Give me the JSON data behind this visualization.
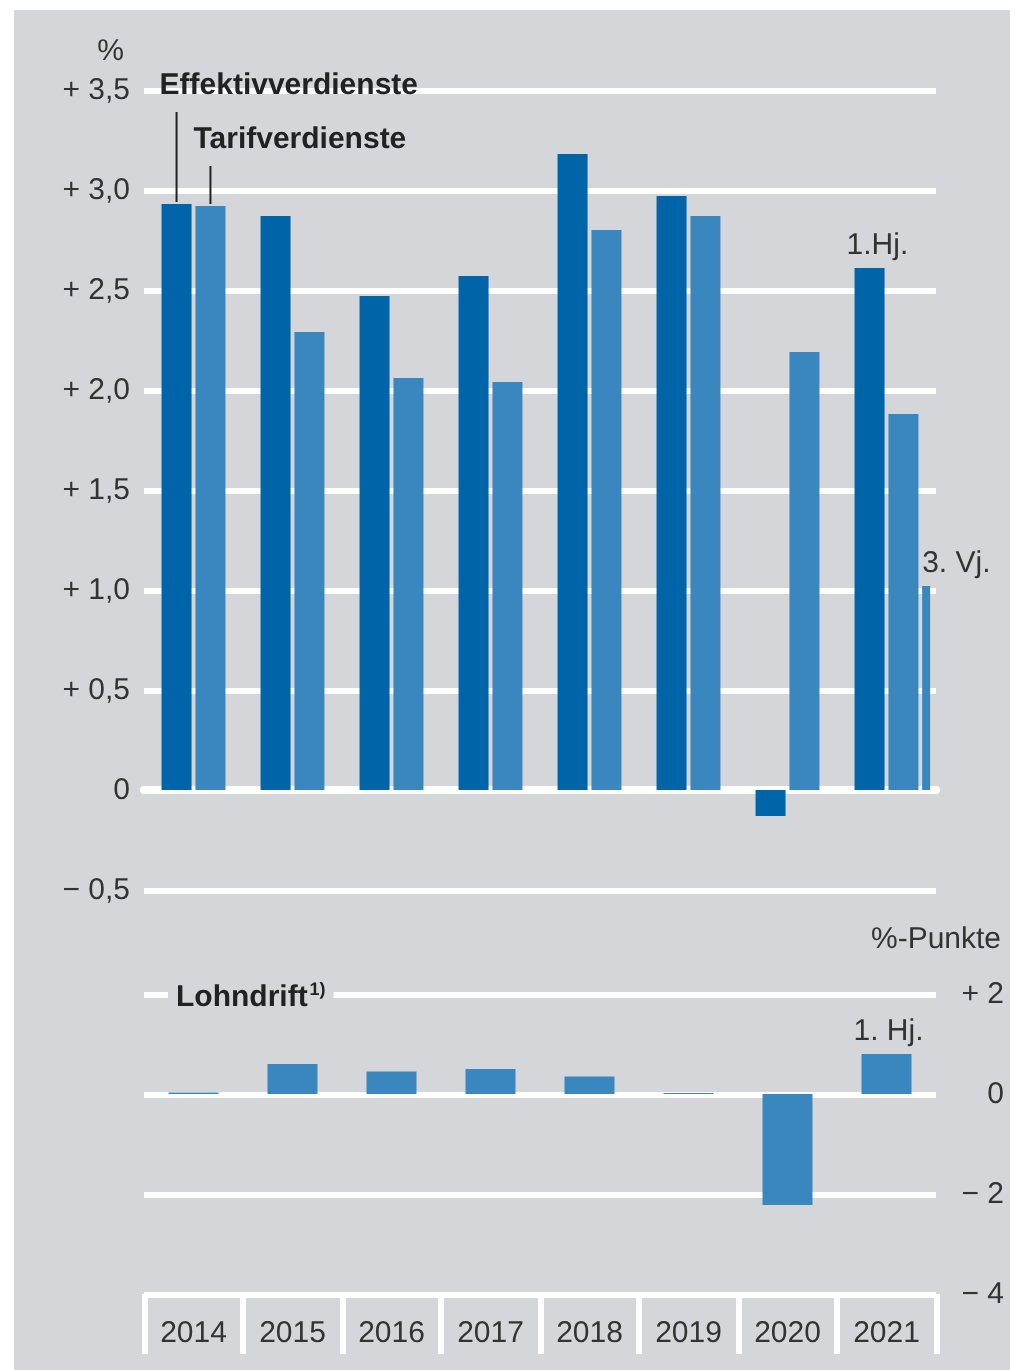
{
  "chart_data": [
    {
      "type": "bar",
      "ylabel": "%",
      "categories": [
        "2014",
        "2015",
        "2016",
        "2017",
        "2018",
        "2019",
        "2020",
        "2021"
      ],
      "series": [
        {
          "name": "Effektivverdienste",
          "color": "#0064a8",
          "values": [
            2.93,
            2.87,
            2.47,
            2.57,
            3.18,
            2.97,
            -0.13,
            2.61
          ]
        },
        {
          "name": "Tarifverdienste",
          "color": "#3a87c0",
          "values": [
            2.92,
            2.29,
            2.06,
            2.04,
            2.8,
            2.87,
            2.19,
            1.88
          ]
        },
        {
          "color": "#3a87c0",
          "values": [
            null,
            null,
            null,
            null,
            null,
            null,
            null,
            1.02
          ]
        }
      ],
      "ylim": [
        -0.5,
        3.5
      ],
      "yticks": [
        {
          "value": -0.5,
          "label": "− 0,5"
        },
        0,
        {
          "value": 0.5,
          "label": "+ 0,5"
        },
        {
          "value": 1,
          "label": "+ 1,0"
        },
        {
          "value": 1.5,
          "label": "+ 1,5"
        },
        {
          "value": 2,
          "label": "+ 2,0"
        },
        {
          "value": 2.5,
          "label": "+ 2,5"
        },
        {
          "value": 3,
          "label": "+ 3,0"
        },
        {
          "value": 3.5,
          "label": "+ 3,5"
        }
      ],
      "grid": "y",
      "tick_labels": "y",
      "annotations": [
        {
          "text": "1.Hj.",
          "x": "2021",
          "y": 2.61
        },
        {
          "text": "3. Vj.",
          "x": "2021",
          "y": 1.02
        }
      ]
    },
    {
      "type": "bar",
      "title": "Lohndrift$^{1)}$",
      "ylabel": "%-Punkte",
      "categories": [
        "2014",
        "2015",
        "2016",
        "2017",
        "2018",
        "2019",
        "2020",
        "2021"
      ],
      "series": [
        {
          "color": "#3a87c0",
          "values": [
            0.03,
            0.6,
            0.45,
            0.5,
            0.35,
            0.02,
            -2.22,
            0.8
          ]
        }
      ],
      "ylim": [
        -4,
        2
      ],
      "yticks": [
        {
          "value": -4,
          "label": "− 4"
        },
        {
          "value": -2,
          "label": "− 2"
        },
        0,
        {
          "value": 2,
          "label": "+ 2"
        }
      ],
      "grid": "y",
      "annotations": [
        {
          "text": "1. Hj.",
          "x": "2021",
          "y": 0.8
        }
      ]
    }
  ]
}
